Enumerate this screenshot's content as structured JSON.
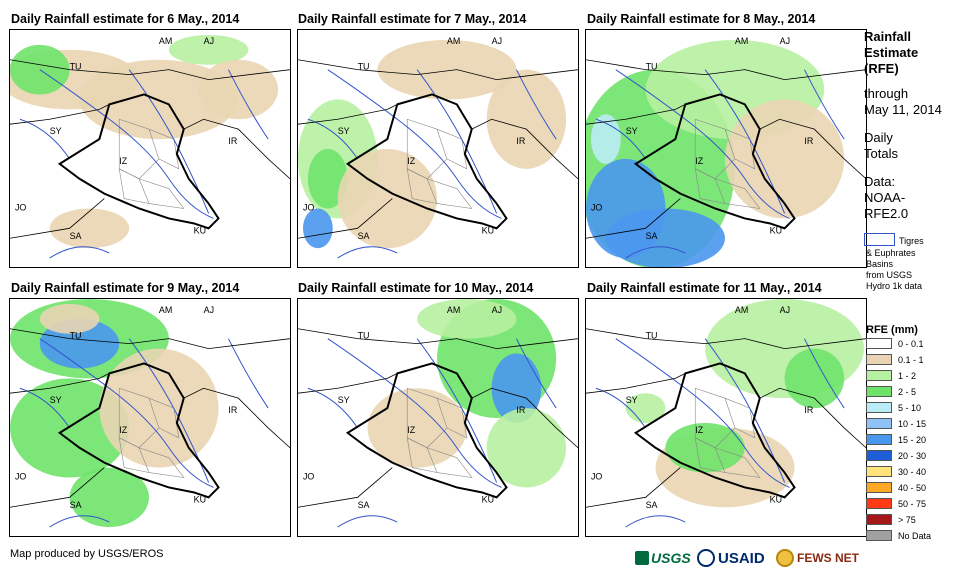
{
  "panels": [
    {
      "title": "Daily Rainfall estimate for 6 May., 2014"
    },
    {
      "title": "Daily Rainfall estimate for 7 May., 2014"
    },
    {
      "title": "Daily Rainfall estimate for 8 May., 2014"
    },
    {
      "title": "Daily Rainfall estimate for 9 May., 2014"
    },
    {
      "title": "Daily Rainfall estimate for 10 May., 2014"
    },
    {
      "title": "Daily Rainfall estimate for 11 May., 2014"
    }
  ],
  "map_labels": {
    "am": "AM",
    "aj": "AJ",
    "tu": "TU",
    "sy": "SY",
    "iz": "IZ",
    "ir": "IR",
    "jo": "JO",
    "sa": "SA",
    "ku": "KU"
  },
  "sidebar": {
    "title_line1": "Rainfall",
    "title_line2": "Estimate",
    "title_line3": "(RFE)",
    "through_line1": "through",
    "through_line2": "May 11, 2014",
    "daily_line1": "Daily",
    "daily_line2": "Totals",
    "data_line1": "Data:",
    "data_line2": "NOAA-",
    "data_line3": "RFE2.0",
    "basin_line1": "Tigres",
    "basin_line2": "& Euphrates",
    "basin_line3": "Basins",
    "basin_line4": "from USGS",
    "basin_line5": "Hydro 1k data",
    "rfe_title": "RFE (mm)"
  },
  "legend": [
    {
      "label": "0 - 0.1",
      "color": "#ffffff"
    },
    {
      "label": "0.1 - 1",
      "color": "#e9d5b3"
    },
    {
      "label": "1 - 2",
      "color": "#b7f0a0"
    },
    {
      "label": "2 - 5",
      "color": "#6ee36a"
    },
    {
      "label": "5 - 10",
      "color": "#b9ecf4"
    },
    {
      "label": "10 - 15",
      "color": "#8fc3f5"
    },
    {
      "label": "15 - 20",
      "color": "#4a97ee"
    },
    {
      "label": "20 - 30",
      "color": "#1d5fd8"
    },
    {
      "label": "30 - 40",
      "color": "#ffe47a"
    },
    {
      "label": "40 - 50",
      "color": "#ffa826"
    },
    {
      "label": "50 - 75",
      "color": "#ff3a16"
    },
    {
      "label": "> 75",
      "color": "#a4171b"
    },
    {
      "label": "No Data",
      "color": "#a0a0a0"
    }
  ],
  "footer": {
    "credit": "Map produced by USGS/EROS"
  },
  "logos": {
    "usgs": "USGS",
    "usaid": "USAID",
    "fewsnet": "FEWS NET"
  },
  "colors": {
    "river": "#3355cc",
    "border": "#000000",
    "admin": "#888888"
  }
}
